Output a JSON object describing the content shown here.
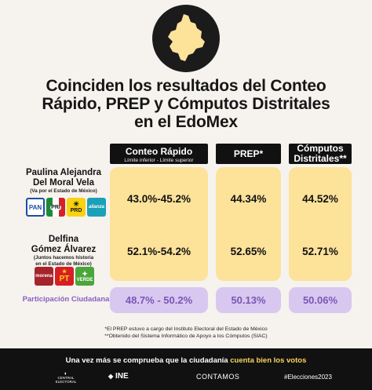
{
  "title": {
    "line1": "Coinciden los resultados del Conteo",
    "line2": "Rápido, PREP y Cómputos Distritales",
    "line3": "en el EdoMex"
  },
  "columns": {
    "conteo": {
      "label": "Conteo Rápido",
      "sub": "Límite inferior - Límite superior"
    },
    "prep": {
      "label": "PREP*"
    },
    "computos": {
      "line1": "Cómputos",
      "line2": "Distritales**"
    }
  },
  "candidates": [
    {
      "name_line1": "Paulina Alejandra",
      "name_line2": "Del Moral Vela",
      "note_line1": "(Va por el Estado de México)",
      "note_line2": "",
      "conteo": "43.0%-45.2%",
      "prep": "44.34%",
      "computos": "44.52%",
      "parties": [
        "PAN",
        "PRI",
        "PRD",
        "alianza"
      ]
    },
    {
      "name_line1": "Delfina",
      "name_line2": "Gómez Álvarez",
      "note_line1": "(Juntos hacemos historia",
      "note_line2": "en el Estado de México)",
      "conteo": "52.1%-54.2%",
      "prep": "52.65%",
      "computos": "52.71%",
      "parties": [
        "morena",
        "PT",
        "VERDE"
      ]
    }
  ],
  "participation": {
    "label": "Participación Ciudadana",
    "conteo": "48.7% - 50.2%",
    "prep": "50.13%",
    "computos": "50.06%"
  },
  "footnotes": {
    "line1": "*El PREP estuvo a cargo del Instituto Electoral del Estado de México",
    "line2": "**Obtenido del Sistema Informático de Apoyo a los Cómputos (SIAC)"
  },
  "footer": {
    "message_start": "Una vez más se comprueba que la ciudadanía",
    "message_highlight": "cuenta bien los votos",
    "logo_central": "CENTRAL ELECTORAL",
    "logo_ine": "INE",
    "contamos": "CONTAMOS",
    "hashtag": "#Elecciones2023"
  },
  "colors": {
    "background": "#f6f2ee",
    "panel": "#fde29a",
    "participation_panel": "#d8c8ef",
    "participation_text": "#7a56b8",
    "header": "#111111",
    "highlight": "#fbd45e"
  },
  "icons": [
    "edomex-map-icon"
  ]
}
